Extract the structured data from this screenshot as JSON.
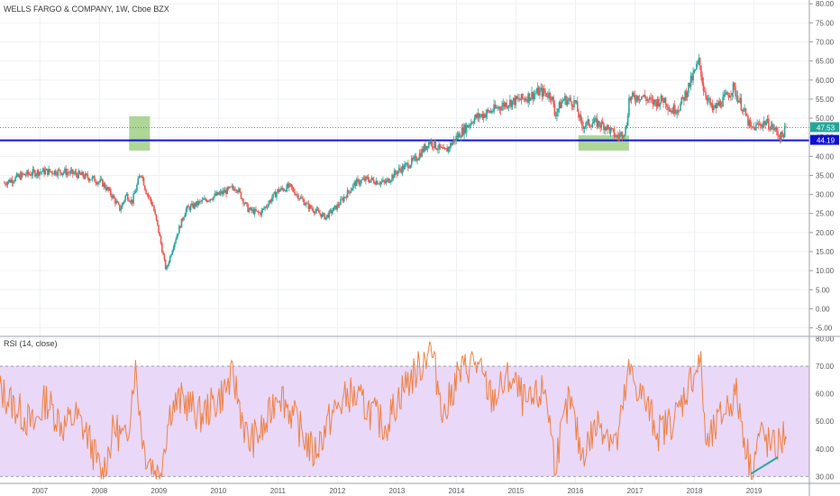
{
  "header": {
    "title": "WELLS FARGO & COMPANY, 1W, Cboe BZX"
  },
  "rsi": {
    "title": "RSI (14, close)"
  },
  "colors": {
    "up": "#26a69a",
    "down": "#ef5350",
    "support": "#1010d0",
    "highlight": "#8cc46c",
    "rsi_line": "#f08040",
    "rsi_band": "#e9d8f8",
    "price_tag": "#26a69a",
    "support_tag": "#1010d0"
  },
  "chart_data": [
    {
      "type": "candlestick",
      "title": "WELLS FARGO & COMPANY, 1W, Cboe BZX",
      "y_ticks": [
        "80.00",
        "75.00",
        "70.00",
        "65.00",
        "60.00",
        "55.00",
        "50.00",
        "45.00",
        "40.00",
        "35.00",
        "30.00",
        "25.00",
        "20.00",
        "15.00",
        "10.00",
        "5.00",
        "0.00",
        "-5.00"
      ],
      "ylim": [
        -7,
        81
      ],
      "x_ticks": [
        {
          "label": "2007",
          "t": 2007.0
        },
        {
          "label": "2008",
          "t": 2008.0
        },
        {
          "label": "2009",
          "t": 2009.0
        },
        {
          "label": "2010",
          "t": 2010.0
        },
        {
          "label": "2011",
          "t": 2011.0
        },
        {
          "label": "2012",
          "t": 2012.0
        },
        {
          "label": "2013",
          "t": 2013.0
        },
        {
          "label": "2014",
          "t": 2014.0
        },
        {
          "label": "2015",
          "t": 2015.0
        },
        {
          "label": "2016",
          "t": 2016.0
        },
        {
          "label": "2017",
          "t": 2017.0
        },
        {
          "label": "2018",
          "t": 2018.0
        },
        {
          "label": "2019",
          "t": 2019.0
        }
      ],
      "last_price": {
        "label": "47.53",
        "value": 47.53
      },
      "support": {
        "label": "44.19",
        "value": 44.19
      },
      "highlights": [
        {
          "t_start": 2008.5,
          "t_end": 2008.85,
          "y_low": 41.5,
          "y_high": 50.5
        },
        {
          "t_start": 2016.05,
          "t_end": 2016.9,
          "y_low": 41.5,
          "y_high": 45.5
        }
      ],
      "price_path": [
        {
          "t": 2006.4,
          "v": 33
        },
        {
          "t": 2006.7,
          "v": 35
        },
        {
          "t": 2007.0,
          "v": 36
        },
        {
          "t": 2007.4,
          "v": 36
        },
        {
          "t": 2007.7,
          "v": 35
        },
        {
          "t": 2007.9,
          "v": 34
        },
        {
          "t": 2008.05,
          "v": 33
        },
        {
          "t": 2008.2,
          "v": 30
        },
        {
          "t": 2008.35,
          "v": 26
        },
        {
          "t": 2008.45,
          "v": 30
        },
        {
          "t": 2008.55,
          "v": 28
        },
        {
          "t": 2008.7,
          "v": 36
        },
        {
          "t": 2008.78,
          "v": 31
        },
        {
          "t": 2008.9,
          "v": 27
        },
        {
          "t": 2009.0,
          "v": 20
        },
        {
          "t": 2009.12,
          "v": 10
        },
        {
          "t": 2009.25,
          "v": 17
        },
        {
          "t": 2009.45,
          "v": 26
        },
        {
          "t": 2009.7,
          "v": 28
        },
        {
          "t": 2010.0,
          "v": 30
        },
        {
          "t": 2010.3,
          "v": 32
        },
        {
          "t": 2010.5,
          "v": 26
        },
        {
          "t": 2010.7,
          "v": 25
        },
        {
          "t": 2011.0,
          "v": 31
        },
        {
          "t": 2011.2,
          "v": 32
        },
        {
          "t": 2011.5,
          "v": 27
        },
        {
          "t": 2011.8,
          "v": 24
        },
        {
          "t": 2012.0,
          "v": 27
        },
        {
          "t": 2012.3,
          "v": 33
        },
        {
          "t": 2012.5,
          "v": 34
        },
        {
          "t": 2012.8,
          "v": 33
        },
        {
          "t": 2013.0,
          "v": 36
        },
        {
          "t": 2013.3,
          "v": 39
        },
        {
          "t": 2013.55,
          "v": 44
        },
        {
          "t": 2013.8,
          "v": 41
        },
        {
          "t": 2014.0,
          "v": 45
        },
        {
          "t": 2014.3,
          "v": 50
        },
        {
          "t": 2014.6,
          "v": 52
        },
        {
          "t": 2014.85,
          "v": 54
        },
        {
          "t": 2015.1,
          "v": 55
        },
        {
          "t": 2015.4,
          "v": 57
        },
        {
          "t": 2015.6,
          "v": 56
        },
        {
          "t": 2015.65,
          "v": 51
        },
        {
          "t": 2015.8,
          "v": 55
        },
        {
          "t": 2016.0,
          "v": 54
        },
        {
          "t": 2016.1,
          "v": 48
        },
        {
          "t": 2016.3,
          "v": 49
        },
        {
          "t": 2016.5,
          "v": 48
        },
        {
          "t": 2016.7,
          "v": 45
        },
        {
          "t": 2016.85,
          "v": 47
        },
        {
          "t": 2016.9,
          "v": 55
        },
        {
          "t": 2017.1,
          "v": 56
        },
        {
          "t": 2017.3,
          "v": 54
        },
        {
          "t": 2017.5,
          "v": 55
        },
        {
          "t": 2017.6,
          "v": 52
        },
        {
          "t": 2017.75,
          "v": 53
        },
        {
          "t": 2017.95,
          "v": 60
        },
        {
          "t": 2018.08,
          "v": 65
        },
        {
          "t": 2018.15,
          "v": 58
        },
        {
          "t": 2018.3,
          "v": 52
        },
        {
          "t": 2018.5,
          "v": 55
        },
        {
          "t": 2018.65,
          "v": 58
        },
        {
          "t": 2018.8,
          "v": 53
        },
        {
          "t": 2018.95,
          "v": 47
        },
        {
          "t": 2019.05,
          "v": 48
        },
        {
          "t": 2019.2,
          "v": 49
        },
        {
          "t": 2019.35,
          "v": 47
        },
        {
          "t": 2019.45,
          "v": 45
        },
        {
          "t": 2019.55,
          "v": 47.5
        }
      ]
    },
    {
      "type": "line",
      "title": "RSI (14, close)",
      "y_ticks": [
        "80.00",
        "70.00",
        "60.00",
        "50.00",
        "40.00",
        "30.00"
      ],
      "ylim": [
        27.5,
        80.5
      ],
      "bands": [
        30,
        70
      ],
      "series": [
        {
          "values": [
            {
              "t": 2006.3,
              "v": 62
            },
            {
              "t": 2006.6,
              "v": 55
            },
            {
              "t": 2006.9,
              "v": 48
            },
            {
              "t": 2007.1,
              "v": 58
            },
            {
              "t": 2007.4,
              "v": 48
            },
            {
              "t": 2007.6,
              "v": 52
            },
            {
              "t": 2007.8,
              "v": 45
            },
            {
              "t": 2008.05,
              "v": 30
            },
            {
              "t": 2008.25,
              "v": 48
            },
            {
              "t": 2008.45,
              "v": 42
            },
            {
              "t": 2008.6,
              "v": 70
            },
            {
              "t": 2008.75,
              "v": 40
            },
            {
              "t": 2009.0,
              "v": 30
            },
            {
              "t": 2009.2,
              "v": 55
            },
            {
              "t": 2009.4,
              "v": 58
            },
            {
              "t": 2009.7,
              "v": 52
            },
            {
              "t": 2010.0,
              "v": 58
            },
            {
              "t": 2010.25,
              "v": 66
            },
            {
              "t": 2010.5,
              "v": 42
            },
            {
              "t": 2010.8,
              "v": 48
            },
            {
              "t": 2011.0,
              "v": 62
            },
            {
              "t": 2011.3,
              "v": 50
            },
            {
              "t": 2011.6,
              "v": 38
            },
            {
              "t": 2011.9,
              "v": 52
            },
            {
              "t": 2012.2,
              "v": 60
            },
            {
              "t": 2012.5,
              "v": 55
            },
            {
              "t": 2012.8,
              "v": 48
            },
            {
              "t": 2013.1,
              "v": 62
            },
            {
              "t": 2013.4,
              "v": 70
            },
            {
              "t": 2013.55,
              "v": 78
            },
            {
              "t": 2013.8,
              "v": 52
            },
            {
              "t": 2014.0,
              "v": 66
            },
            {
              "t": 2014.3,
              "v": 72
            },
            {
              "t": 2014.6,
              "v": 58
            },
            {
              "t": 2014.9,
              "v": 66
            },
            {
              "t": 2015.2,
              "v": 55
            },
            {
              "t": 2015.5,
              "v": 62
            },
            {
              "t": 2015.65,
              "v": 35
            },
            {
              "t": 2015.9,
              "v": 58
            },
            {
              "t": 2016.1,
              "v": 38
            },
            {
              "t": 2016.4,
              "v": 50
            },
            {
              "t": 2016.7,
              "v": 42
            },
            {
              "t": 2016.9,
              "v": 68
            },
            {
              "t": 2017.1,
              "v": 60
            },
            {
              "t": 2017.4,
              "v": 46
            },
            {
              "t": 2017.7,
              "v": 52
            },
            {
              "t": 2017.95,
              "v": 66
            },
            {
              "t": 2018.1,
              "v": 72
            },
            {
              "t": 2018.2,
              "v": 40
            },
            {
              "t": 2018.5,
              "v": 54
            },
            {
              "t": 2018.7,
              "v": 60
            },
            {
              "t": 2018.95,
              "v": 32
            },
            {
              "t": 2019.1,
              "v": 46
            },
            {
              "t": 2019.3,
              "v": 40
            },
            {
              "t": 2019.45,
              "v": 42
            },
            {
              "t": 2019.55,
              "v": 48
            }
          ]
        }
      ],
      "divergence_line": [
        {
          "t": 2018.95,
          "v": 31
        },
        {
          "t": 2019.4,
          "v": 37
        }
      ]
    }
  ]
}
